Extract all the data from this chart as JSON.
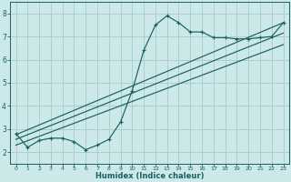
{
  "bg_color": "#cce8e8",
  "grid_color": "#aacfcf",
  "line_color": "#1a6060",
  "xlabel": "Humidex (Indice chaleur)",
  "xlim": [
    -0.5,
    23.5
  ],
  "ylim": [
    1.5,
    8.5
  ],
  "yticks": [
    2,
    3,
    4,
    5,
    6,
    7,
    8
  ],
  "xticks": [
    0,
    1,
    2,
    3,
    4,
    5,
    6,
    7,
    8,
    9,
    10,
    11,
    12,
    13,
    14,
    15,
    16,
    17,
    18,
    19,
    20,
    21,
    22,
    23
  ],
  "series1_x": [
    0,
    1,
    2,
    3,
    4,
    5,
    6,
    7,
    8,
    9,
    10,
    11,
    12,
    13,
    14,
    15,
    16,
    17,
    18,
    19,
    20,
    21,
    22,
    23
  ],
  "series1_y": [
    2.8,
    2.2,
    2.5,
    2.6,
    2.6,
    2.45,
    2.1,
    2.3,
    2.55,
    3.3,
    4.65,
    6.4,
    7.5,
    7.9,
    7.6,
    7.2,
    7.2,
    6.95,
    6.95,
    6.9,
    6.9,
    6.95,
    7.0,
    7.6
  ],
  "line2_x": [
    0,
    23
  ],
  "line2_y": [
    2.75,
    7.6
  ],
  "line3_x": [
    0,
    23
  ],
  "line3_y": [
    2.55,
    7.15
  ],
  "line4_x": [
    0,
    23
  ],
  "line4_y": [
    2.3,
    6.65
  ]
}
